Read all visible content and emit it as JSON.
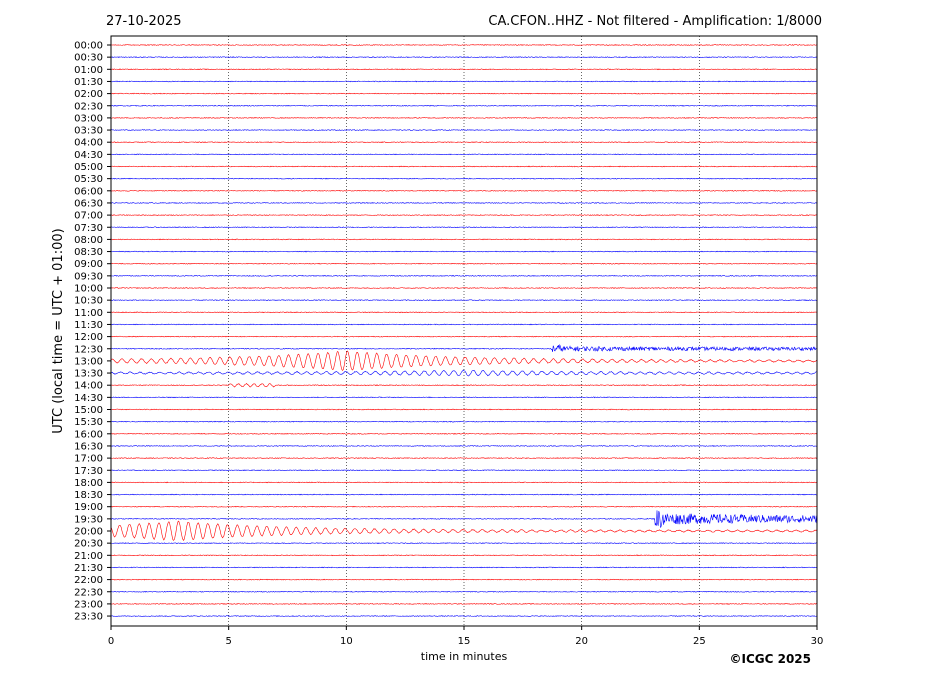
{
  "header": {
    "date": "27-10-2025",
    "station_title": "CA.CFON..HHZ - Not filtered - Amplification: 1/8000"
  },
  "axes": {
    "xlabel": "time in minutes",
    "ylabel": "UTC (local time = UTC + 01:00)"
  },
  "copyright": "©ICGC 2025",
  "colors": {
    "trace_a": "#ff0000",
    "trace_b": "#0000ff",
    "grid": "#000000"
  },
  "chart_data": {
    "type": "line",
    "title": "CA.CFON..HHZ - Not filtered - Amplification: 1/8000",
    "xlabel": "time in minutes",
    "ylabel": "UTC (local time = UTC + 01:00)",
    "xlim": [
      0,
      30
    ],
    "x_ticks": [
      0,
      5,
      10,
      15,
      20,
      25,
      30
    ],
    "grid": "vertical dotted at x ticks",
    "row_labels": [
      "00:00",
      "00:30",
      "01:00",
      "01:30",
      "02:00",
      "02:30",
      "03:00",
      "03:30",
      "04:00",
      "04:30",
      "05:00",
      "05:30",
      "06:00",
      "06:30",
      "07:00",
      "07:30",
      "08:00",
      "08:30",
      "09:00",
      "09:30",
      "10:00",
      "10:30",
      "11:00",
      "11:30",
      "12:00",
      "12:30",
      "13:00",
      "13:30",
      "14:00",
      "14:30",
      "15:00",
      "15:30",
      "16:00",
      "16:30",
      "17:00",
      "17:30",
      "18:00",
      "18:30",
      "19:00",
      "19:30",
      "20:00",
      "20:30",
      "21:00",
      "21:30",
      "22:00",
      "22:30",
      "23:00",
      "23:30"
    ],
    "row_color_cycle": [
      "red",
      "blue"
    ],
    "background_noise_amplitude": 0.4,
    "events": [
      {
        "row": "12:30",
        "start_min": 18.7,
        "end_min": 30,
        "amplitude": 2.5,
        "kind": "noise burst"
      },
      {
        "row": "13:00",
        "start_min": 0,
        "end_min": 30,
        "amplitude": 9,
        "kind": "oscillatory train",
        "peak_min": 10.0
      },
      {
        "row": "13:30",
        "start_min": 0,
        "end_min": 30,
        "amplitude": 2,
        "kind": "oscillatory tail"
      },
      {
        "row": "14:00",
        "start_min": 5,
        "end_min": 7,
        "amplitude": 1.5,
        "kind": "small oscillation"
      },
      {
        "row": "19:30",
        "start_min": 23.1,
        "end_min": 30,
        "amplitude": 6,
        "kind": "noise burst"
      },
      {
        "row": "20:00",
        "start_min": 0,
        "end_min": 30,
        "amplitude": 9,
        "kind": "oscillatory train",
        "peak_min": 2.8
      }
    ]
  }
}
